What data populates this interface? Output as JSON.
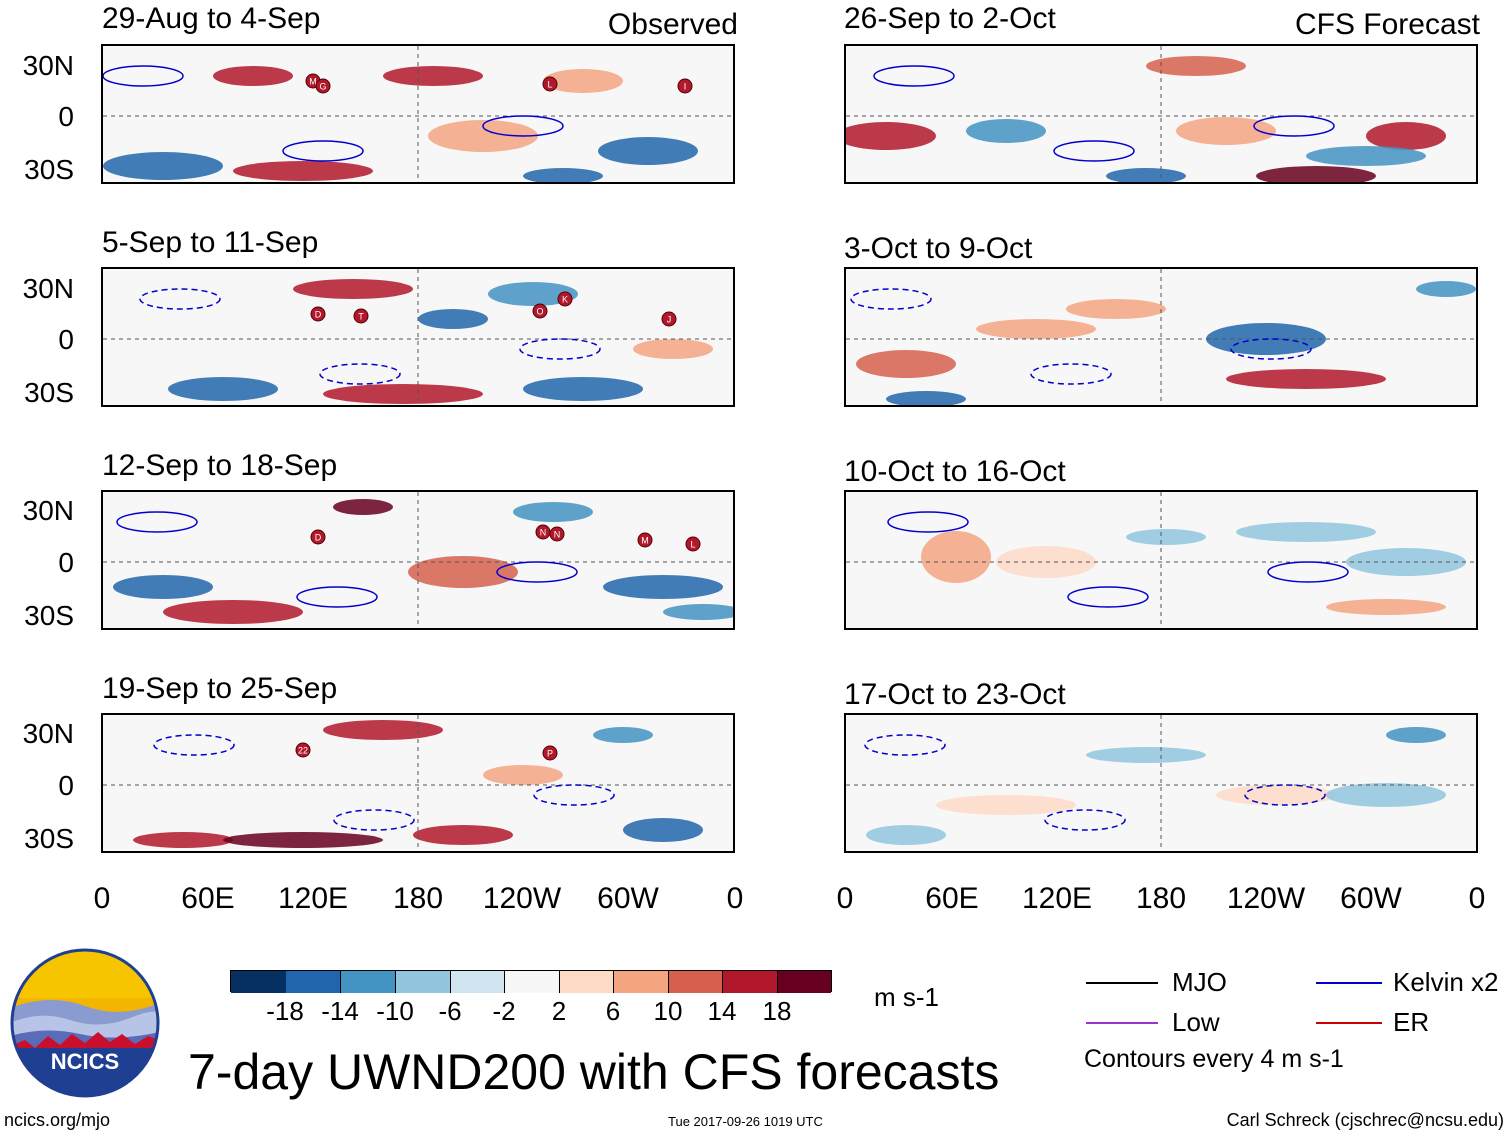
{
  "columns": [
    {
      "tag": "Observed",
      "panels": [
        "29-Aug to 4-Sep",
        "5-Sep to 11-Sep",
        "12-Sep to 18-Sep",
        "19-Sep to 25-Sep"
      ]
    },
    {
      "tag": "CFS Forecast",
      "panels": [
        "26-Sep to 2-Oct",
        "3-Oct to 9-Oct",
        "10-Oct to 16-Oct",
        "17-Oct to 23-Oct"
      ]
    }
  ],
  "lat_labels": [
    "30N",
    "0",
    "30S"
  ],
  "lon_labels": [
    "0",
    "60E",
    "120E",
    "180",
    "120W",
    "60W",
    "0"
  ],
  "storm_markers": [
    [
      "M",
      "G",
      "L",
      "I"
    ],
    [
      "D",
      "T",
      "O",
      "K",
      "J"
    ],
    [
      "D",
      "N",
      "N",
      "M",
      "L"
    ],
    [
      "22",
      "P"
    ]
  ],
  "colorbar": {
    "tick_labels": [
      "-18",
      "-14",
      "-10",
      "-6",
      "-2",
      "2",
      "6",
      "10",
      "14",
      "18"
    ],
    "colors": [
      "#053061",
      "#2166ac",
      "#4393c3",
      "#92c5de",
      "#d1e5f0",
      "#f7f7f7",
      "#fddbc7",
      "#f4a582",
      "#d6604d",
      "#b2182b",
      "#67001f"
    ],
    "units": "m s-1"
  },
  "legend": {
    "items": [
      {
        "label": "MJO",
        "color": "#000000"
      },
      {
        "label": "Kelvin x2",
        "color": "#0000cc"
      },
      {
        "label": "Low",
        "color": "#9933cc"
      },
      {
        "label": "ER",
        "color": "#cc0000"
      }
    ],
    "contours_note": "Contours every 4 m s-1"
  },
  "logo_text": "NCICS",
  "main_title": "7-day UWND200 with CFS forecasts",
  "footer": {
    "left": "ncics.org/mjo",
    "center": "Tue 2017-09-26 1019 UTC",
    "right": "Carl Schreck (cjschrec@ncsu.edu)"
  },
  "chart_data": {
    "type": "heatmap",
    "title": "7-day UWND200 with CFS forecasts",
    "variable": "200-hPa zonal wind anomaly (filled) with MJO, Kelvin x2, Low, ER filtered contours",
    "units": "m s-1",
    "x_axis": {
      "ticks": [
        "0",
        "60E",
        "120E",
        "180",
        "120W",
        "60W",
        "0"
      ],
      "range": [
        0,
        360
      ]
    },
    "y_axis": {
      "ticks": [
        "30N",
        "0",
        "30S"
      ],
      "range": [
        -40,
        40
      ]
    },
    "color_levels": [
      -18,
      -14,
      -10,
      -6,
      -2,
      2,
      6,
      10,
      14,
      18
    ],
    "panels": [
      {
        "period": "29-Aug to 4-Sep",
        "source": "Observed"
      },
      {
        "period": "5-Sep to 11-Sep",
        "source": "Observed"
      },
      {
        "period": "12-Sep to 18-Sep",
        "source": "Observed"
      },
      {
        "period": "19-Sep to 25-Sep",
        "source": "Observed"
      },
      {
        "period": "26-Sep to 2-Oct",
        "source": "CFS Forecast"
      },
      {
        "period": "3-Oct to 9-Oct",
        "source": "CFS Forecast"
      },
      {
        "period": "10-Oct to 16-Oct",
        "source": "CFS Forecast"
      },
      {
        "period": "17-Oct to 23-Oct",
        "source": "CFS Forecast"
      }
    ]
  }
}
